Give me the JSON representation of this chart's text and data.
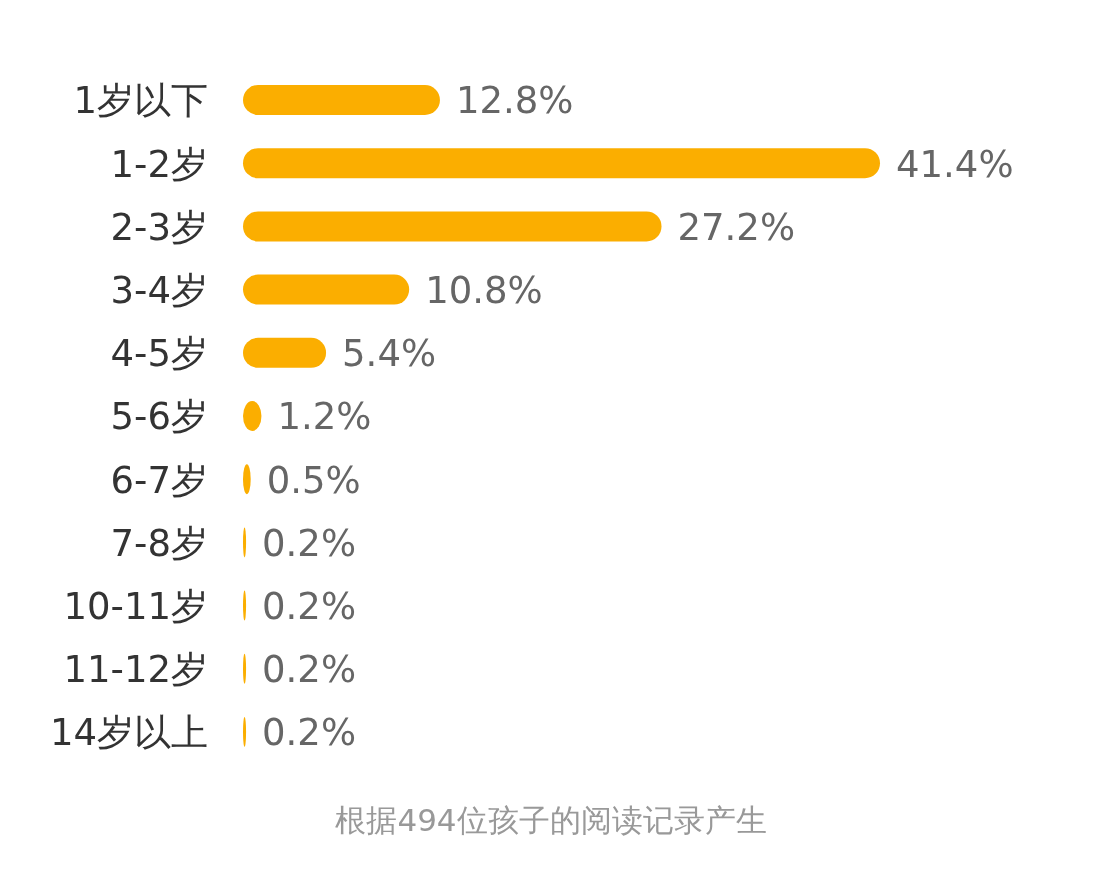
{
  "chart_data": {
    "type": "bar",
    "orientation": "horizontal",
    "categories": [
      "1岁以下",
      "1-2岁",
      "2-3岁",
      "3-4岁",
      "4-5岁",
      "5-6岁",
      "6-7岁",
      "7-8岁",
      "10-11岁",
      "11-12岁",
      "14岁以上"
    ],
    "values": [
      12.8,
      41.4,
      27.2,
      10.8,
      5.4,
      1.2,
      0.5,
      0.2,
      0.2,
      0.2,
      0.2
    ],
    "color": "#fbae00",
    "value_labels": [
      "12.8%",
      "41.4%",
      "27.2%",
      "10.8%",
      "5.4%",
      "1.2%",
      "0.5%",
      "0.2%",
      "0.2%",
      "0.2%",
      "0.2%"
    ],
    "annotations": [
      "根据494位孩子的阅读记录产生"
    ]
  }
}
